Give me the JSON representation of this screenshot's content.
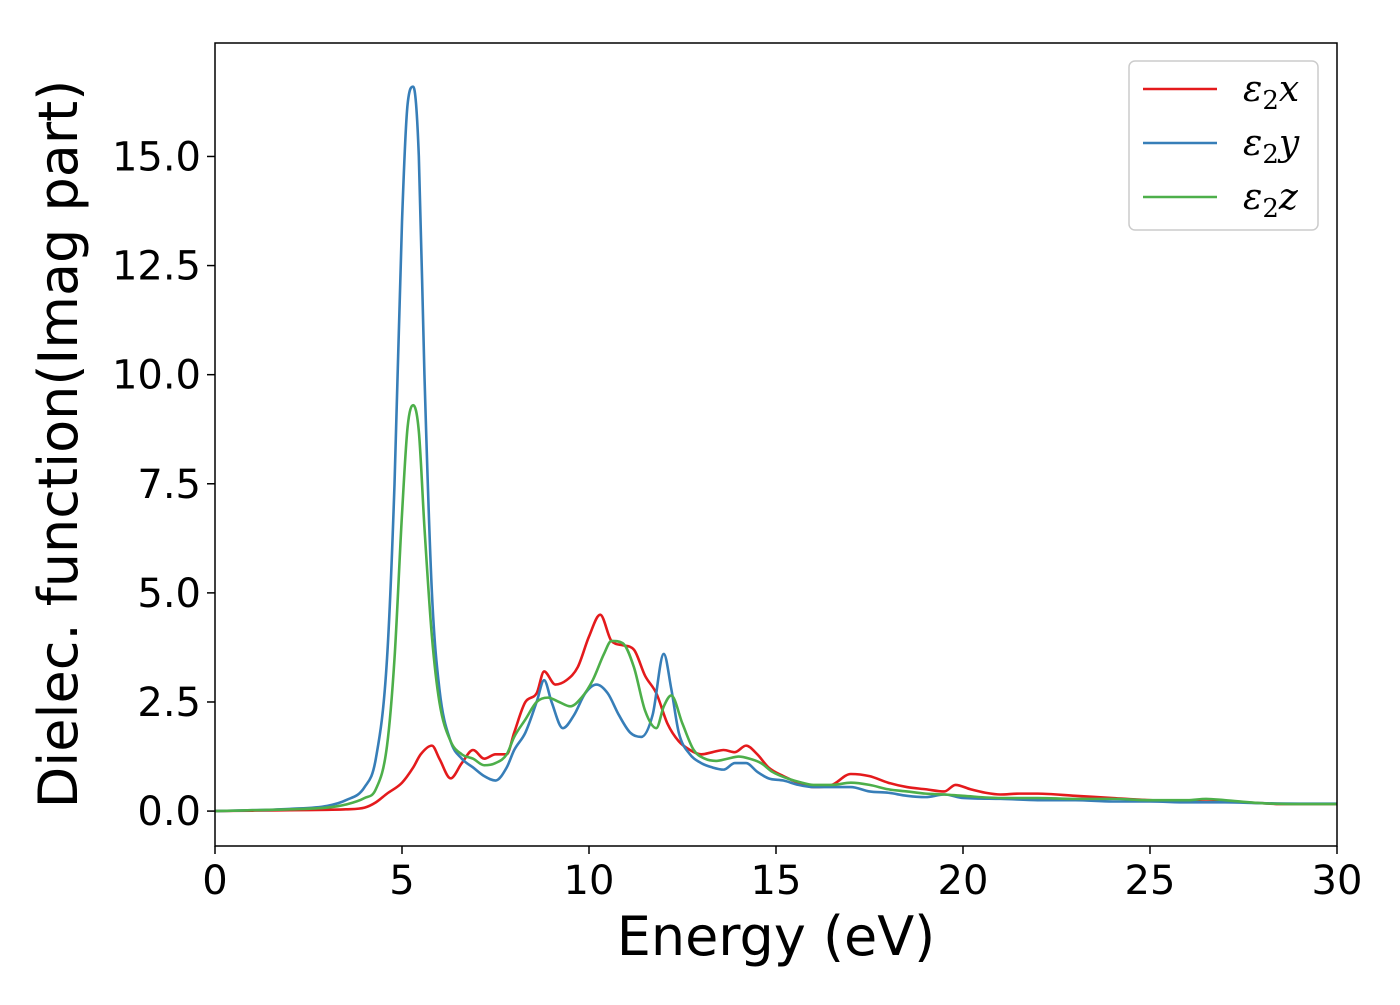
{
  "chart_data": {
    "type": "line",
    "xlabel": "Energy (eV)",
    "ylabel": "Dielec. function(Imag part)",
    "xlim": [
      0,
      30
    ],
    "ylim": [
      -0.8,
      17.6
    ],
    "xticks": [
      0,
      5,
      10,
      15,
      20,
      25,
      30
    ],
    "xtick_labels": [
      "0",
      "5",
      "10",
      "15",
      "20",
      "25",
      "30"
    ],
    "yticks": [
      0.0,
      2.5,
      5.0,
      7.5,
      10.0,
      12.5,
      15.0
    ],
    "ytick_labels": [
      "0.0",
      "2.5",
      "5.0",
      "7.5",
      "10.0",
      "12.5",
      "15.0"
    ],
    "grid": false,
    "legend_position": "top-right",
    "series": [
      {
        "name": "ε₂x",
        "legend_base": "ε",
        "legend_sub": "2",
        "legend_suffix": "x",
        "color": "#e41a1c",
        "x": [
          0,
          1,
          2,
          3,
          3.5,
          4,
          4.3,
          4.6,
          5.0,
          5.3,
          5.5,
          5.8,
          6.0,
          6.3,
          6.6,
          6.9,
          7.2,
          7.5,
          7.8,
          8.0,
          8.3,
          8.6,
          8.8,
          9.1,
          9.4,
          9.7,
          10.0,
          10.3,
          10.6,
          10.9,
          11.2,
          11.5,
          11.8,
          12.1,
          12.4,
          12.7,
          13.0,
          13.3,
          13.6,
          13.9,
          14.2,
          14.5,
          14.8,
          15.2,
          15.6,
          16.0,
          16.5,
          17.0,
          17.5,
          18.0,
          18.5,
          19.0,
          19.5,
          19.8,
          20.2,
          20.6,
          21.0,
          21.5,
          22.0,
          23.0,
          24.0,
          25.0,
          26.0,
          27.0,
          28.0,
          28.5,
          29.0,
          30.0
        ],
        "values": [
          0.0,
          0.01,
          0.02,
          0.03,
          0.04,
          0.08,
          0.2,
          0.4,
          0.65,
          1.0,
          1.3,
          1.5,
          1.2,
          0.75,
          1.1,
          1.4,
          1.2,
          1.3,
          1.3,
          1.8,
          2.5,
          2.7,
          3.2,
          2.9,
          3.0,
          3.3,
          4.0,
          4.5,
          3.9,
          3.8,
          3.7,
          3.1,
          2.7,
          2.0,
          1.6,
          1.4,
          1.3,
          1.35,
          1.4,
          1.35,
          1.5,
          1.3,
          1.0,
          0.8,
          0.65,
          0.55,
          0.6,
          0.85,
          0.8,
          0.65,
          0.55,
          0.5,
          0.45,
          0.6,
          0.5,
          0.42,
          0.38,
          0.4,
          0.4,
          0.35,
          0.3,
          0.25,
          0.22,
          0.22,
          0.18,
          0.16,
          0.16,
          0.16
        ]
      },
      {
        "name": "ε₂y",
        "legend_base": "ε",
        "legend_sub": "2",
        "legend_suffix": "y",
        "color": "#377eb8",
        "x": [
          0,
          1,
          2,
          3,
          3.5,
          4,
          4.3,
          4.6,
          4.8,
          5.0,
          5.15,
          5.3,
          5.45,
          5.6,
          5.8,
          6.0,
          6.3,
          6.6,
          6.9,
          7.2,
          7.5,
          7.8,
          8.0,
          8.3,
          8.6,
          8.8,
          9.0,
          9.3,
          9.6,
          9.9,
          10.2,
          10.5,
          10.8,
          11.1,
          11.4,
          11.7,
          12.0,
          12.2,
          12.4,
          12.7,
          13.0,
          13.3,
          13.6,
          13.9,
          14.2,
          14.5,
          14.8,
          15.2,
          15.6,
          16.0,
          16.5,
          17.0,
          17.5,
          18.0,
          18.5,
          19.0,
          19.5,
          20.0,
          21.0,
          22.0,
          23.0,
          24.0,
          25.0,
          26.0,
          27.0,
          28.0,
          29.0,
          30.0
        ],
        "values": [
          0.0,
          0.02,
          0.05,
          0.12,
          0.25,
          0.55,
          1.2,
          3.5,
          7.5,
          13.5,
          16.2,
          16.6,
          15.0,
          10.0,
          5.0,
          2.8,
          1.6,
          1.2,
          1.0,
          0.8,
          0.7,
          1.0,
          1.4,
          1.8,
          2.5,
          3.0,
          2.5,
          1.9,
          2.2,
          2.7,
          2.9,
          2.7,
          2.2,
          1.8,
          1.7,
          2.2,
          3.6,
          2.8,
          1.8,
          1.3,
          1.1,
          1.0,
          0.95,
          1.1,
          1.1,
          0.9,
          0.75,
          0.7,
          0.6,
          0.55,
          0.55,
          0.55,
          0.45,
          0.42,
          0.35,
          0.32,
          0.38,
          0.3,
          0.28,
          0.25,
          0.25,
          0.22,
          0.22,
          0.2,
          0.2,
          0.18,
          0.17,
          0.17
        ]
      },
      {
        "name": "ε₂z",
        "legend_base": "ε",
        "legend_sub": "2",
        "legend_suffix": "z",
        "color": "#4daf4a",
        "x": [
          0,
          1,
          2,
          3,
          3.5,
          4,
          4.3,
          4.6,
          4.8,
          5.0,
          5.15,
          5.3,
          5.45,
          5.6,
          5.8,
          6.0,
          6.3,
          6.6,
          6.9,
          7.2,
          7.5,
          7.8,
          8.0,
          8.3,
          8.6,
          8.9,
          9.2,
          9.5,
          9.8,
          10.1,
          10.4,
          10.6,
          10.9,
          11.2,
          11.5,
          11.8,
          12.0,
          12.2,
          12.5,
          12.8,
          13.1,
          13.4,
          13.7,
          14.0,
          14.3,
          14.6,
          14.9,
          15.3,
          15.7,
          16.0,
          16.5,
          17.0,
          17.5,
          18.0,
          18.5,
          19.0,
          19.5,
          20.0,
          21.0,
          22.0,
          23.0,
          24.0,
          25.0,
          26.0,
          26.5,
          27.0,
          28.0,
          29.0,
          30.0
        ],
        "values": [
          0.0,
          0.02,
          0.04,
          0.08,
          0.15,
          0.3,
          0.5,
          1.5,
          3.5,
          6.8,
          8.8,
          9.3,
          8.7,
          6.5,
          4.0,
          2.5,
          1.6,
          1.3,
          1.2,
          1.05,
          1.1,
          1.3,
          1.7,
          2.1,
          2.5,
          2.6,
          2.5,
          2.4,
          2.6,
          3.0,
          3.6,
          3.9,
          3.85,
          3.3,
          2.3,
          1.9,
          2.4,
          2.65,
          2.0,
          1.4,
          1.2,
          1.15,
          1.2,
          1.25,
          1.2,
          1.1,
          0.9,
          0.75,
          0.65,
          0.6,
          0.6,
          0.65,
          0.6,
          0.5,
          0.45,
          0.4,
          0.38,
          0.35,
          0.3,
          0.3,
          0.28,
          0.28,
          0.25,
          0.25,
          0.28,
          0.25,
          0.18,
          0.16,
          0.16
        ]
      }
    ]
  }
}
